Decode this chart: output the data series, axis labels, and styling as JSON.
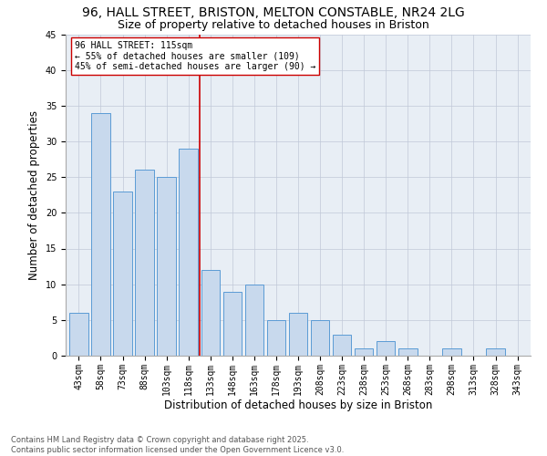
{
  "title1": "96, HALL STREET, BRISTON, MELTON CONSTABLE, NR24 2LG",
  "title2": "Size of property relative to detached houses in Briston",
  "xlabel": "Distribution of detached houses by size in Briston",
  "ylabel": "Number of detached properties",
  "categories": [
    "43sqm",
    "58sqm",
    "73sqm",
    "88sqm",
    "103sqm",
    "118sqm",
    "133sqm",
    "148sqm",
    "163sqm",
    "178sqm",
    "193sqm",
    "208sqm",
    "223sqm",
    "238sqm",
    "253sqm",
    "268sqm",
    "283sqm",
    "298sqm",
    "313sqm",
    "328sqm",
    "343sqm"
  ],
  "values": [
    6,
    34,
    23,
    26,
    25,
    29,
    12,
    9,
    10,
    5,
    6,
    5,
    3,
    1,
    2,
    1,
    0,
    1,
    0,
    1,
    0
  ],
  "bar_color": "#c8d9ed",
  "bar_edge_color": "#5b9bd5",
  "vline_x": 5.5,
  "vline_color": "#cc0000",
  "annotation_text": "96 HALL STREET: 115sqm\n← 55% of detached houses are smaller (109)\n45% of semi-detached houses are larger (90) →",
  "annotation_box_color": "#ffffff",
  "annotation_box_edge": "#cc0000",
  "ylim": [
    0,
    45
  ],
  "yticks": [
    0,
    5,
    10,
    15,
    20,
    25,
    30,
    35,
    40,
    45
  ],
  "footnote": "Contains HM Land Registry data © Crown copyright and database right 2025.\nContains public sector information licensed under the Open Government Licence v3.0.",
  "bg_color": "#e8eef5",
  "title_fontsize": 10,
  "subtitle_fontsize": 9,
  "axis_label_fontsize": 8.5,
  "tick_fontsize": 7,
  "annotation_fontsize": 7,
  "footnote_fontsize": 6
}
